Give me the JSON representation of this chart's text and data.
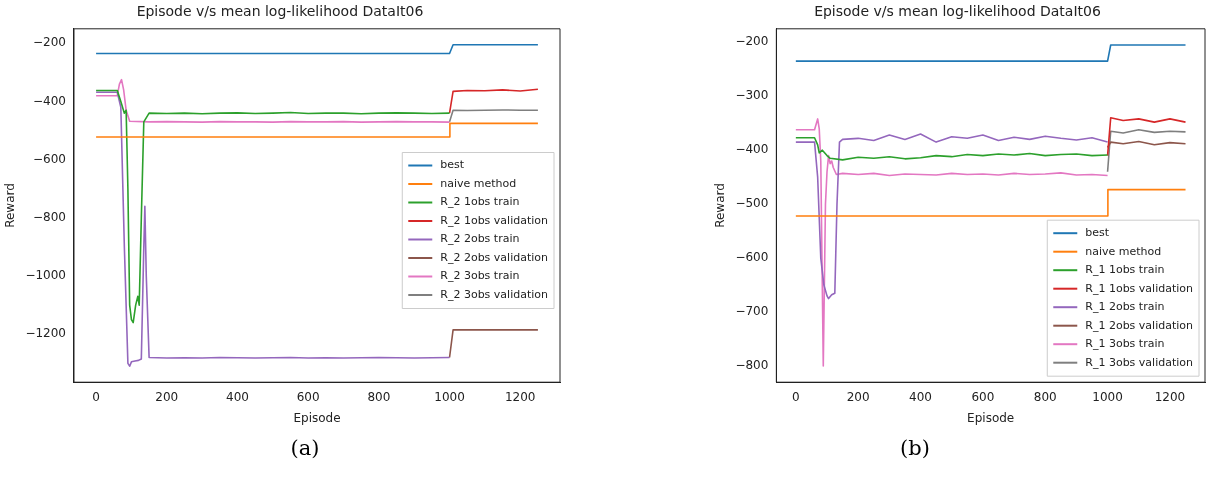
{
  "chart_data": [
    {
      "type": "line",
      "title": "Episode v/s mean log-likelihood DataIt06",
      "xlabel": "Episode",
      "ylabel": "Reward",
      "annotations": [
        "(a)"
      ],
      "xlim": [
        -62.5,
        1312.5
      ],
      "ylim": [
        -1365,
        -150
      ],
      "xticks": [
        0,
        200,
        400,
        600,
        800,
        1000,
        1200
      ],
      "yticks": [
        -1200,
        -1000,
        -800,
        -600,
        -400,
        -200
      ],
      "grid": false,
      "legend": "center right",
      "series": [
        {
          "name": "best",
          "color": "#1f77b4",
          "x": [
            0,
            1000,
            1010,
            1250
          ],
          "values": [
            -235,
            -235,
            -205,
            -205
          ]
        },
        {
          "name": "naive method",
          "color": "#ff7f0e",
          "x": [
            0,
            1000,
            1001,
            1250
          ],
          "values": [
            -522,
            -522,
            -475,
            -475
          ]
        },
        {
          "name": "R_2 1obs train",
          "color": "#2ca02c",
          "x": [
            0,
            60,
            70,
            80,
            85,
            90,
            95,
            100,
            105,
            112,
            118,
            122,
            128,
            135,
            150,
            200,
            250,
            300,
            350,
            400,
            450,
            500,
            550,
            600,
            650,
            700,
            750,
            800,
            850,
            900,
            950,
            1000
          ],
          "values": [
            -362,
            -362,
            -400,
            -440,
            -430,
            -700,
            -1100,
            -1150,
            -1160,
            -1100,
            -1070,
            -1100,
            -800,
            -470,
            -440,
            -441,
            -440,
            -442,
            -440,
            -439,
            -441,
            -440,
            -438,
            -441,
            -440,
            -440,
            -442,
            -440,
            -439,
            -440,
            -441,
            -440
          ]
        },
        {
          "name": "R_2 1obs validation",
          "color": "#d62728",
          "x": [
            1000,
            1010,
            1050,
            1100,
            1150,
            1200,
            1250
          ],
          "values": [
            -440,
            -365,
            -362,
            -363,
            -360,
            -364,
            -358
          ]
        },
        {
          "name": "R_2 2obs train",
          "color": "#9467bd",
          "x": [
            0,
            60,
            70,
            80,
            90,
            95,
            100,
            110,
            120,
            128,
            135,
            138,
            142,
            150,
            200,
            250,
            300,
            350,
            400,
            450,
            500,
            550,
            600,
            650,
            700,
            750,
            800,
            850,
            900,
            950,
            1000
          ],
          "values": [
            -368,
            -368,
            -420,
            -900,
            -1300,
            -1310,
            -1295,
            -1292,
            -1290,
            -1285,
            -900,
            -760,
            -1000,
            -1280,
            -1282,
            -1281,
            -1282,
            -1280,
            -1281,
            -1282,
            -1281,
            -1280,
            -1282,
            -1281,
            -1282,
            -1281,
            -1280,
            -1281,
            -1282,
            -1281,
            -1280
          ]
        },
        {
          "name": "R_2 2obs validation",
          "color": "#8c564b",
          "x": [
            1000,
            1010,
            1050,
            1100,
            1150,
            1200,
            1250
          ],
          "values": [
            -1280,
            -1185,
            -1185,
            -1185,
            -1185,
            -1185,
            -1185
          ]
        },
        {
          "name": "R_2 3obs train",
          "color": "#e377c2",
          "x": [
            0,
            60,
            66,
            72,
            78,
            85,
            95,
            150,
            200,
            250,
            300,
            350,
            400,
            450,
            500,
            550,
            600,
            650,
            700,
            750,
            800,
            850,
            900,
            950,
            1000
          ],
          "values": [
            -380,
            -380,
            -340,
            -325,
            -360,
            -430,
            -468,
            -470,
            -469,
            -470,
            -471,
            -469,
            -470,
            -470,
            -471,
            -469,
            -470,
            -470,
            -469,
            -471,
            -470,
            -469,
            -470,
            -470,
            -471
          ]
        },
        {
          "name": "R_2 3obs validation",
          "color": "#7f7f7f",
          "x": [
            1000,
            1010,
            1050,
            1100,
            1150,
            1200,
            1250
          ],
          "values": [
            -470,
            -430,
            -431,
            -430,
            -429,
            -430,
            -430
          ]
        }
      ]
    },
    {
      "type": "line",
      "title": "Episode v/s mean log-likelihood DataIt06",
      "xlabel": "Episode",
      "ylabel": "Reward",
      "annotations": [
        "(b)"
      ],
      "xlim": [
        -62.5,
        1312.5
      ],
      "ylim": [
        -830,
        -175
      ],
      "xticks": [
        0,
        200,
        400,
        600,
        800,
        1000,
        1200
      ],
      "yticks": [
        -800,
        -700,
        -600,
        -500,
        -400,
        -300,
        -200
      ],
      "grid": false,
      "legend": "bottom right",
      "series": [
        {
          "name": "best",
          "color": "#1f77b4",
          "x": [
            0,
            1000,
            1010,
            1250
          ],
          "values": [
            -235,
            -235,
            -205,
            -205
          ]
        },
        {
          "name": "naive method",
          "color": "#ff7f0e",
          "x": [
            0,
            1000,
            1001,
            1250
          ],
          "values": [
            -522,
            -522,
            -473,
            -473
          ]
        },
        {
          "name": "R_1 1obs train",
          "color": "#2ca02c",
          "x": [
            0,
            60,
            70,
            75,
            85,
            100,
            110,
            150,
            200,
            250,
            300,
            350,
            400,
            450,
            500,
            550,
            600,
            650,
            700,
            750,
            800,
            850,
            900,
            950,
            1000
          ],
          "values": [
            -377,
            -377,
            -390,
            -405,
            -400,
            -410,
            -415,
            -418,
            -413,
            -415,
            -412,
            -416,
            -414,
            -410,
            -412,
            -408,
            -410,
            -407,
            -409,
            -406,
            -410,
            -408,
            -407,
            -410,
            -409
          ]
        },
        {
          "name": "R_1 1obs validation",
          "color": "#d62728",
          "x": [
            1000,
            1010,
            1050,
            1100,
            1150,
            1200,
            1250
          ],
          "values": [
            -410,
            -340,
            -345,
            -342,
            -348,
            -342,
            -348
          ]
        },
        {
          "name": "R_1 2obs train",
          "color": "#9467bd",
          "x": [
            0,
            60,
            70,
            80,
            90,
            100,
            105,
            115,
            125,
            132,
            140,
            150,
            200,
            250,
            300,
            350,
            400,
            450,
            500,
            550,
            600,
            650,
            700,
            750,
            800,
            850,
            900,
            950,
            1000
          ],
          "values": [
            -385,
            -385,
            -450,
            -600,
            -650,
            -670,
            -675,
            -668,
            -665,
            -500,
            -385,
            -380,
            -378,
            -382,
            -372,
            -380,
            -370,
            -385,
            -375,
            -378,
            -372,
            -382,
            -376,
            -380,
            -374,
            -378,
            -381,
            -377,
            -385
          ]
        },
        {
          "name": "R_1 2obs validation",
          "color": "#8c564b",
          "x": [
            1000,
            1010,
            1050,
            1100,
            1150,
            1200,
            1250
          ],
          "values": [
            -395,
            -385,
            -388,
            -384,
            -390,
            -386,
            -388
          ]
        },
        {
          "name": "R_1 3obs train",
          "color": "#e377c2",
          "x": [
            0,
            60,
            66,
            70,
            75,
            80,
            88,
            95,
            100,
            105,
            110,
            115,
            120,
            130,
            150,
            200,
            250,
            300,
            350,
            400,
            450,
            500,
            550,
            600,
            650,
            700,
            750,
            800,
            850,
            900,
            950,
            1000
          ],
          "values": [
            -362,
            -362,
            -350,
            -342,
            -360,
            -420,
            -800,
            -500,
            -440,
            -410,
            -425,
            -420,
            -432,
            -445,
            -443,
            -445,
            -443,
            -447,
            -444,
            -445,
            -446,
            -443,
            -445,
            -444,
            -446,
            -443,
            -445,
            -444,
            -442,
            -446,
            -445,
            -447
          ]
        },
        {
          "name": "R_1 3obs validation",
          "color": "#7f7f7f",
          "x": [
            1000,
            1010,
            1050,
            1100,
            1150,
            1200,
            1250
          ],
          "values": [
            -440,
            -365,
            -368,
            -362,
            -367,
            -365,
            -366
          ]
        }
      ]
    }
  ]
}
